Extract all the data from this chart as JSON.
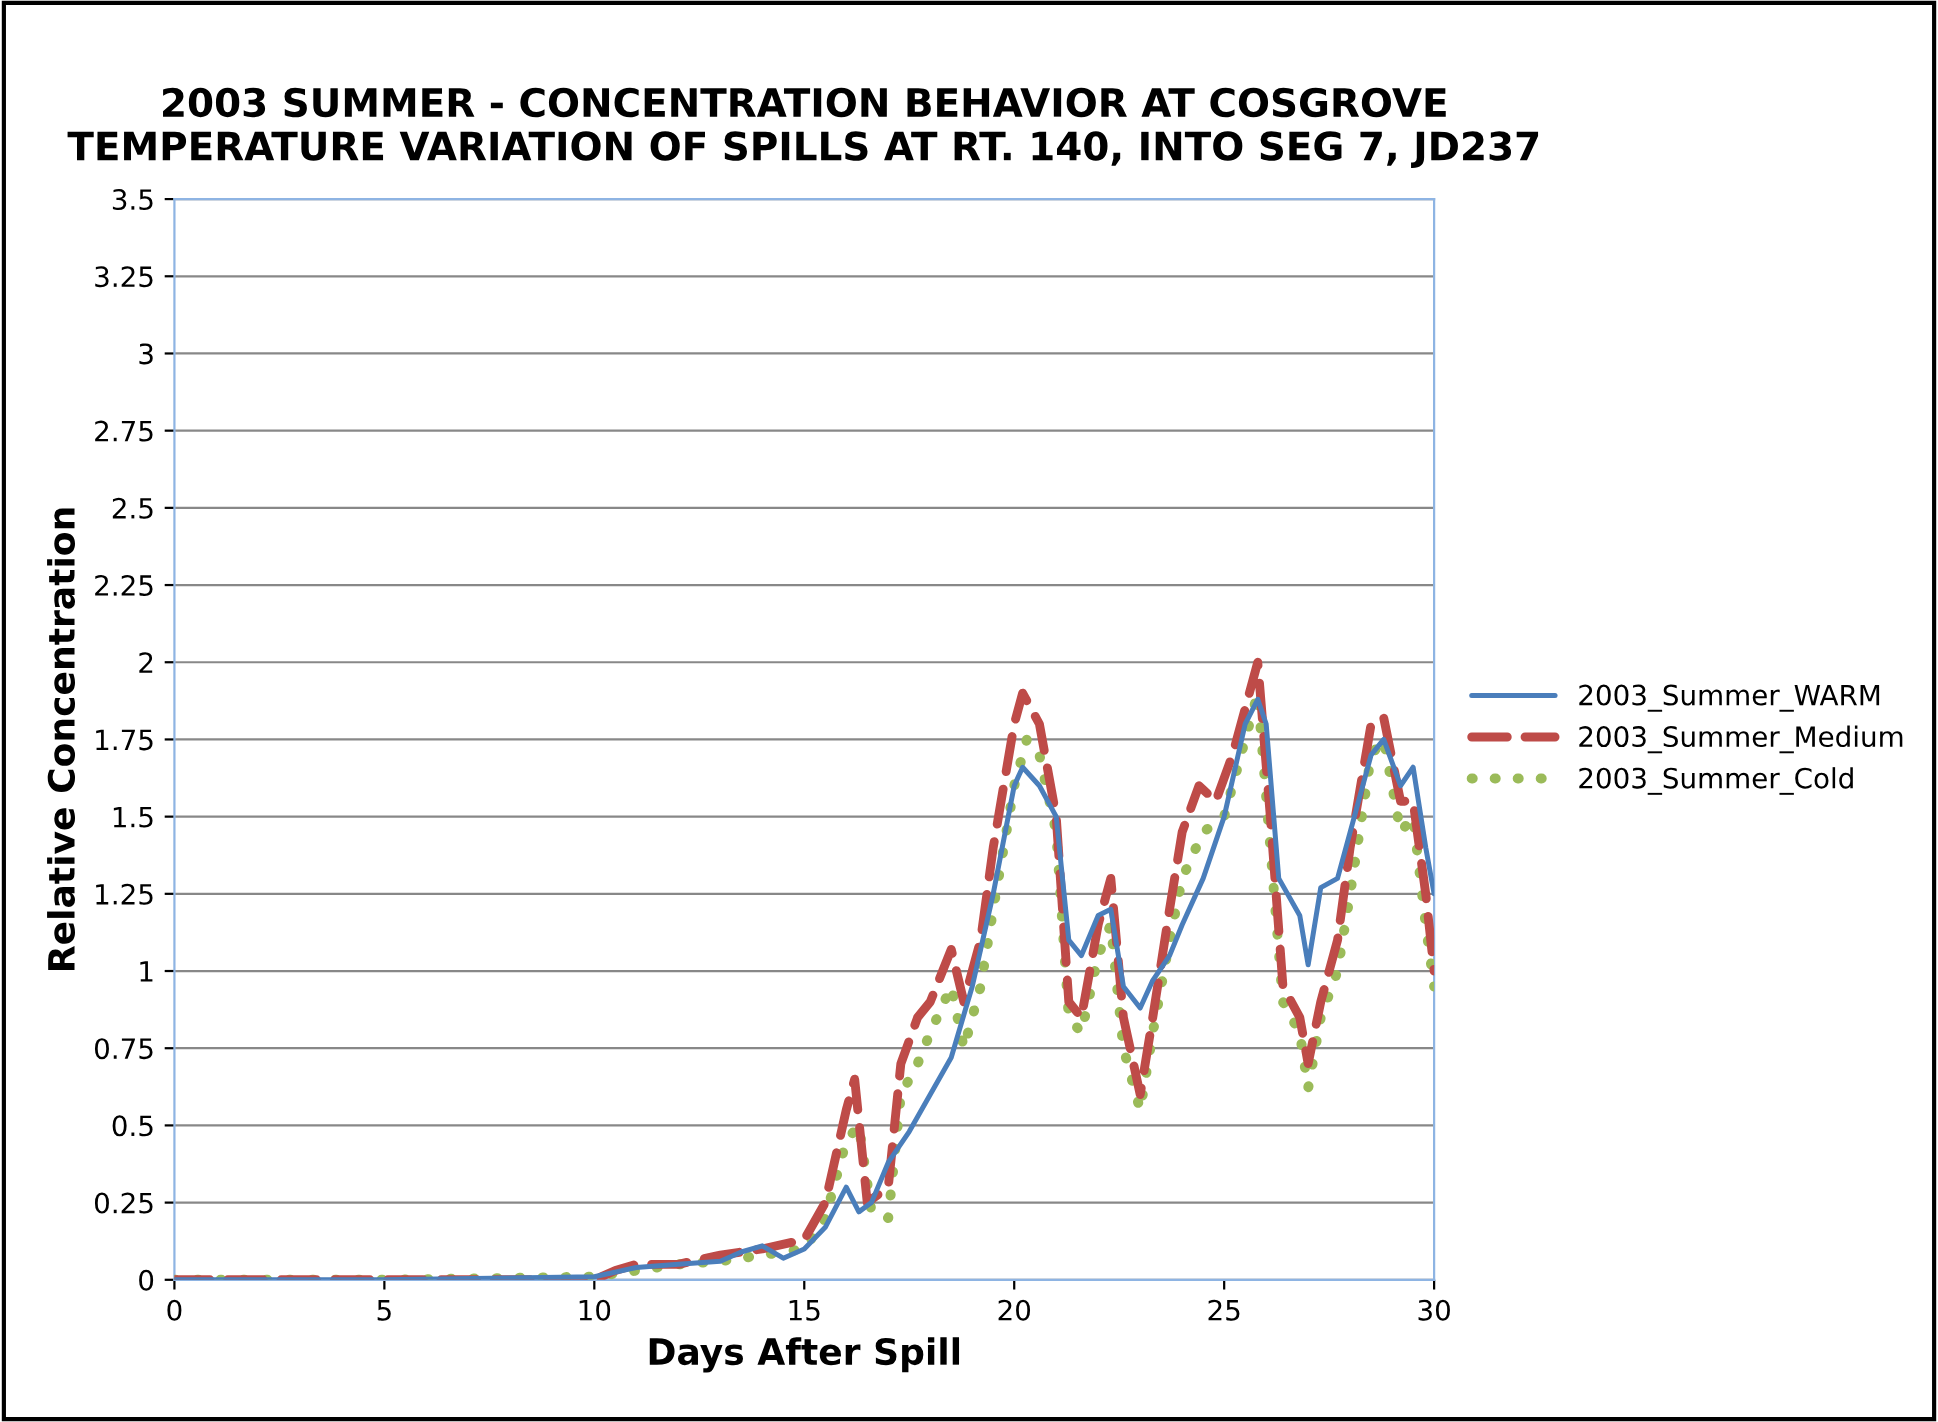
{
  "chart_data": {
    "type": "line",
    "title": "2003 SUMMER - CONCENTRATION BEHAVIOR AT COSGROVE\nTEMPERATURE VARIATION OF SPILLS AT RT. 140, INTO SEG 7, JD237",
    "xlabel": "Days After Spill",
    "ylabel": "Relative Concentration",
    "xlim": [
      0,
      30
    ],
    "xticks": [
      0,
      5,
      10,
      15,
      20,
      25,
      30
    ],
    "ylim": [
      0,
      3.5
    ],
    "yticks": [
      0,
      0.25,
      0.5,
      0.75,
      1,
      1.25,
      1.5,
      1.75,
      2,
      2.25,
      2.5,
      2.75,
      3,
      3.25,
      3.5
    ],
    "grid": "y",
    "legend": "right",
    "marker": "none",
    "series": [
      {
        "name": "2003_Summer_WARM",
        "color": "#4a7ebb",
        "line_style": "solid",
        "x": [
          0,
          5,
          10,
          11,
          12,
          13,
          13.5,
          14,
          14.5,
          15,
          15.5,
          16,
          16.3,
          16.6,
          17,
          17.5,
          18,
          18.5,
          19,
          19.5,
          20,
          20.2,
          20.6,
          21,
          21.3,
          21.6,
          22,
          22.3,
          22.6,
          23,
          23.3,
          23.7,
          24,
          24.5,
          25,
          25.5,
          25.8,
          26,
          26.3,
          26.8,
          27,
          27.3,
          27.7,
          28,
          28.5,
          28.8,
          29.2,
          29.5,
          29.8,
          30
        ],
        "values": [
          0,
          0,
          0.01,
          0.04,
          0.05,
          0.06,
          0.09,
          0.11,
          0.07,
          0.1,
          0.17,
          0.3,
          0.22,
          0.25,
          0.38,
          0.48,
          0.6,
          0.72,
          0.95,
          1.25,
          1.6,
          1.66,
          1.6,
          1.5,
          1.1,
          1.05,
          1.18,
          1.2,
          0.95,
          0.88,
          0.97,
          1.05,
          1.15,
          1.3,
          1.5,
          1.8,
          1.88,
          1.8,
          1.3,
          1.18,
          1.02,
          1.27,
          1.3,
          1.45,
          1.7,
          1.75,
          1.6,
          1.66,
          1.4,
          1.25
        ]
      },
      {
        "name": "2003_Summer_Medium",
        "color": "#be4b48",
        "line_style": "dashed",
        "x": [
          0,
          5,
          10,
          10.5,
          11,
          12,
          13,
          14,
          15,
          15.5,
          16,
          16.2,
          16.5,
          17,
          17.3,
          17.7,
          18,
          18.5,
          18.8,
          19.2,
          19.5,
          20,
          20.2,
          20.6,
          21,
          21.3,
          21.6,
          22,
          22.3,
          22.6,
          23,
          23.3,
          23.7,
          24,
          24.4,
          24.8,
          25.2,
          25.8,
          26.1,
          26.4,
          26.8,
          27,
          27.3,
          27.7,
          28,
          28.5,
          28.8,
          29.2,
          29.5,
          29.8,
          30
        ],
        "values": [
          0,
          0,
          0,
          0.03,
          0.05,
          0.05,
          0.08,
          0.1,
          0.13,
          0.25,
          0.55,
          0.65,
          0.25,
          0.3,
          0.7,
          0.85,
          0.9,
          1.07,
          0.9,
          1.1,
          1.4,
          1.8,
          1.9,
          1.8,
          1.5,
          0.9,
          0.85,
          1.15,
          1.3,
          0.85,
          0.6,
          0.85,
          1.2,
          1.45,
          1.6,
          1.55,
          1.7,
          2.0,
          1.5,
          0.95,
          0.85,
          0.7,
          0.9,
          1.1,
          1.4,
          1.8,
          1.82,
          1.55,
          1.55,
          1.25,
          1.0
        ]
      },
      {
        "name": "2003_Summer_Cold",
        "color": "#9bbb59",
        "line_style": "dotted",
        "x": [
          0,
          5,
          10,
          11,
          12,
          13,
          14,
          15,
          15.5,
          16,
          16.3,
          16.6,
          17,
          17.3,
          17.7,
          18,
          18.5,
          18.8,
          19.2,
          19.5,
          20,
          20.3,
          20.6,
          21,
          21.3,
          21.6,
          22,
          22.3,
          22.6,
          23,
          23.3,
          23.7,
          24,
          24.5,
          25,
          25.5,
          25.8,
          26.1,
          26.4,
          26.8,
          27,
          27.3,
          27.7,
          28,
          28.5,
          28.8,
          29.2,
          29.5,
          29.8,
          30
        ],
        "values": [
          0,
          0,
          0.01,
          0.03,
          0.05,
          0.06,
          0.08,
          0.1,
          0.2,
          0.45,
          0.5,
          0.22,
          0.2,
          0.6,
          0.7,
          0.8,
          0.95,
          0.75,
          0.95,
          1.2,
          1.6,
          1.75,
          1.7,
          1.45,
          0.85,
          0.8,
          1.05,
          1.15,
          0.75,
          0.55,
          0.8,
          1.1,
          1.3,
          1.45,
          1.5,
          1.75,
          1.9,
          1.4,
          0.9,
          0.8,
          0.62,
          0.85,
          1.0,
          1.25,
          1.7,
          1.75,
          1.45,
          1.5,
          1.15,
          0.95
        ]
      }
    ]
  }
}
